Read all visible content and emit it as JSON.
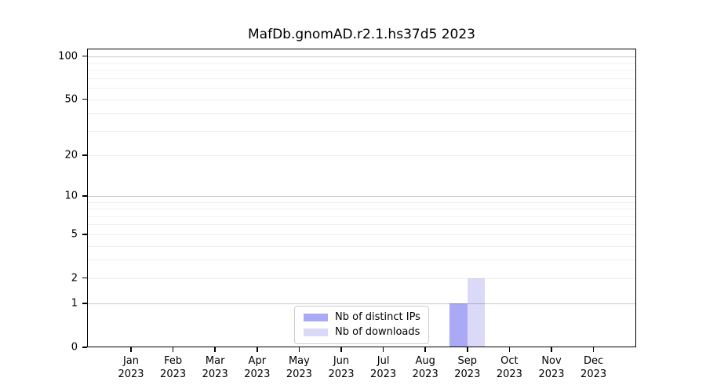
{
  "chart_data": {
    "type": "bar",
    "title": "MafDb.gnomAD.r2.1.hs37d5 2023",
    "x_year": "2023",
    "categories": [
      "Jan",
      "Feb",
      "Mar",
      "Apr",
      "May",
      "Jun",
      "Jul",
      "Aug",
      "Sep",
      "Oct",
      "Nov",
      "Dec"
    ],
    "series": [
      {
        "name": "Nb of distinct IPs",
        "slug": "distinct-ips",
        "color": "#a9a9f5",
        "values": [
          0,
          0,
          0,
          0,
          0,
          0,
          0,
          0,
          1,
          0,
          0,
          0
        ]
      },
      {
        "name": "Nb of downloads",
        "slug": "downloads",
        "color": "#dadaf8",
        "values": [
          0,
          0,
          0,
          0,
          0,
          0,
          0,
          0,
          2,
          0,
          0,
          0
        ]
      }
    ],
    "yaxis": {
      "scale": "log1p",
      "range": [
        0,
        100
      ],
      "top_value": 113,
      "tick_labels": [
        0,
        1,
        2,
        5,
        10,
        20,
        50,
        100
      ],
      "major_gridlines": [
        1,
        10,
        100
      ],
      "minor_gridlines": [
        2,
        3,
        4,
        5,
        6,
        7,
        8,
        9,
        20,
        30,
        40,
        50,
        60,
        70,
        80,
        90
      ]
    },
    "legend": {
      "position": "lower-center",
      "entries": [
        "Nb of distinct IPs",
        "Nb of downloads"
      ]
    },
    "grid": "horizontal-only",
    "colors": {
      "axis": "#000000",
      "major_grid": "#c9c9c9",
      "minor_grid": "#efefef",
      "background": "#ffffff"
    }
  }
}
